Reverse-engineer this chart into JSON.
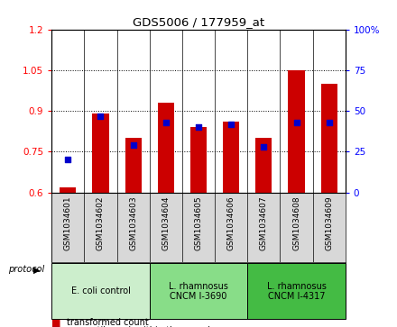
{
  "title": "GDS5006 / 177959_at",
  "samples": [
    "GSM1034601",
    "GSM1034602",
    "GSM1034603",
    "GSM1034604",
    "GSM1034605",
    "GSM1034606",
    "GSM1034607",
    "GSM1034608",
    "GSM1034609"
  ],
  "transformed_counts": [
    0.62,
    0.89,
    0.8,
    0.93,
    0.84,
    0.86,
    0.8,
    1.05,
    1.0
  ],
  "percentile_ranks": [
    20,
    47,
    29,
    43,
    40,
    42,
    28,
    43,
    43
  ],
  "ylim_left": [
    0.6,
    1.2
  ],
  "ylim_right": [
    0,
    100
  ],
  "yticks_left": [
    0.6,
    0.75,
    0.9,
    1.05,
    1.2
  ],
  "yticks_right": [
    0,
    25,
    50,
    75,
    100
  ],
  "bar_color": "#cc0000",
  "dot_color": "#0000cc",
  "groups": [
    {
      "label": "E. coli control",
      "start": 0,
      "end": 3,
      "color": "#cceecc"
    },
    {
      "label": "L. rhamnosus\nCNCM I-3690",
      "start": 3,
      "end": 6,
      "color": "#88dd88"
    },
    {
      "label": "L. rhamnosus\nCNCM I-4317",
      "start": 6,
      "end": 9,
      "color": "#44bb44"
    }
  ],
  "bar_width": 0.5,
  "base_value": 0.6,
  "sample_label_bg": "#d8d8d8"
}
